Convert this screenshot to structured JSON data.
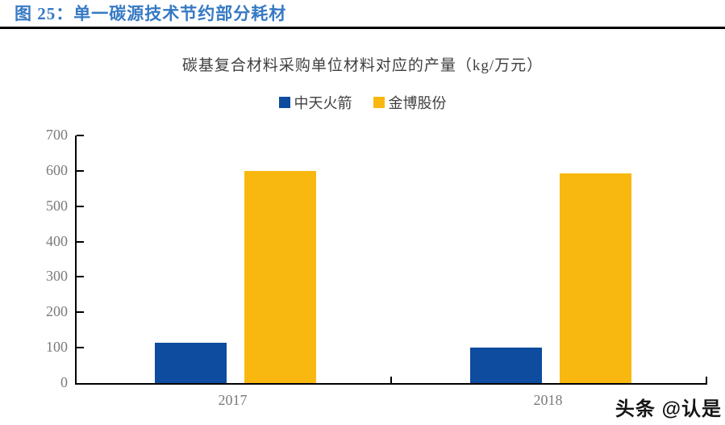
{
  "header": {
    "title": "图 25：单一碳源技术节约部分耗材"
  },
  "chart_data": {
    "type": "bar",
    "title": "碳基复合材料采购单位材料对应的产量（kg/万元）",
    "categories": [
      "2017",
      "2018"
    ],
    "series": [
      {
        "name": "中天火箭",
        "color": "#0D4C9E",
        "values": [
          113,
          100
        ]
      },
      {
        "name": "金博股份",
        "color": "#F8B80F",
        "values": [
          600,
          592
        ]
      }
    ],
    "ylim": [
      0,
      700
    ],
    "ytick_step": 100,
    "grid": false,
    "legend_position": "top-center",
    "xlabel": "",
    "ylabel": ""
  },
  "watermark": "头条 @认是",
  "colors": {
    "figure_title": "#3679C4",
    "header_rule": "#000000",
    "axis": "#000000",
    "tick_label": "#7A7A7A",
    "chart_title": "#3F3F3F",
    "bar_blue": "#0D4C9E",
    "bar_gold": "#F8B80F"
  }
}
